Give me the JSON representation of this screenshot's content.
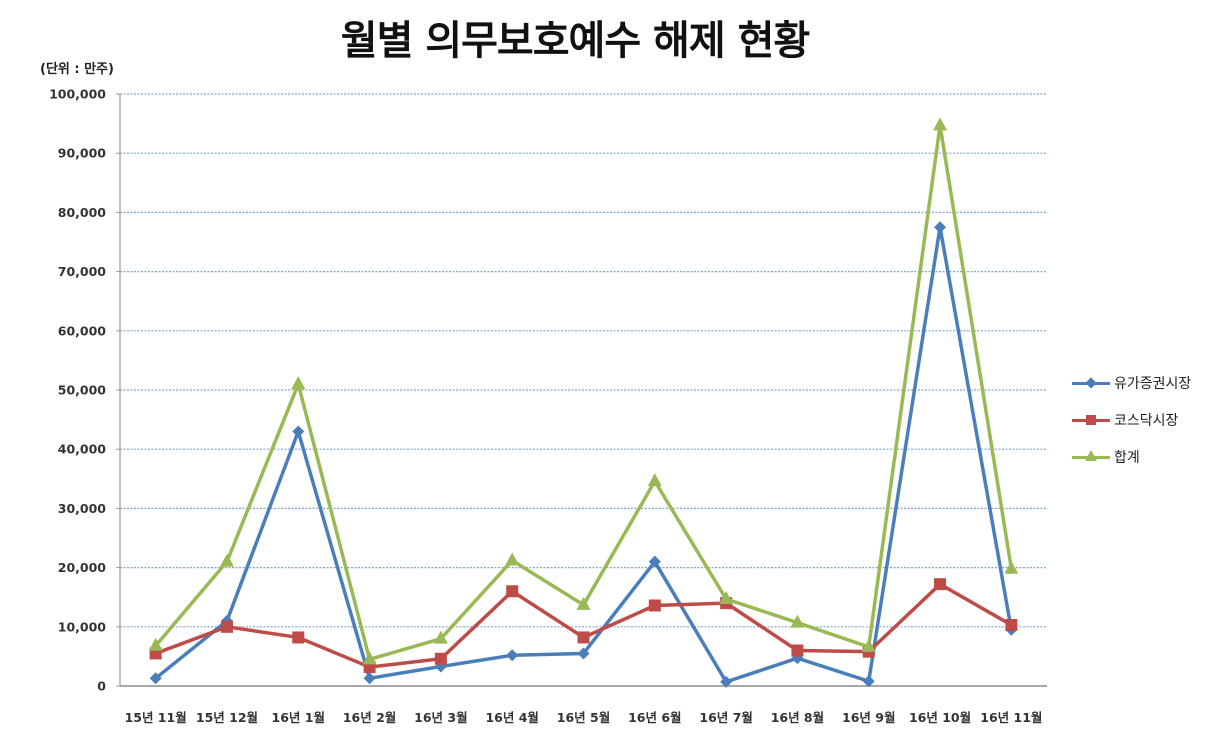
{
  "title": "월별 의무보호예수 해제 현황",
  "unit_label": "(단위 : 만주)",
  "chart_data": {
    "type": "line",
    "title": "월별 의무보호예수 해제 현황",
    "subtitle": "(단위 : 만주)",
    "xlabel": "",
    "ylabel": "",
    "ylim": [
      0,
      100000
    ],
    "yticks": [
      0,
      10000,
      20000,
      30000,
      40000,
      50000,
      60000,
      70000,
      80000,
      90000,
      100000
    ],
    "ytick_labels": [
      "0",
      "10,000",
      "20,000",
      "30,000",
      "40,000",
      "50,000",
      "60,000",
      "70,000",
      "80,000",
      "90,000",
      "100,000"
    ],
    "grid": "horizontal dotted",
    "legend_position": "right",
    "categories": [
      "15년 11월",
      "15년 12월",
      "16년 1월",
      "16년 2월",
      "16년 3월",
      "16년 4월",
      "16년 5월",
      "16년 6월",
      "16년 7월",
      "16년 8월",
      "16년 9월",
      "16년 10월",
      "16년 11월"
    ],
    "series": [
      {
        "name": "유가증권시장",
        "color": "#4A7EBB",
        "marker": "diamond",
        "values": [
          1300,
          11000,
          43000,
          1300,
          3300,
          5200,
          5500,
          21000,
          700,
          4700,
          800,
          77500,
          9500
        ]
      },
      {
        "name": "코스닥시장",
        "color": "#BE4B48",
        "marker": "square",
        "values": [
          5500,
          10000,
          8200,
          3200,
          4600,
          16000,
          8200,
          13600,
          14000,
          6000,
          5800,
          17200,
          10300
        ]
      },
      {
        "name": "합계",
        "color": "#98B954",
        "marker": "triangle",
        "values": [
          6800,
          21000,
          51000,
          4500,
          8000,
          21200,
          13700,
          34600,
          14700,
          10700,
          6600,
          94700,
          19800
        ]
      }
    ]
  }
}
